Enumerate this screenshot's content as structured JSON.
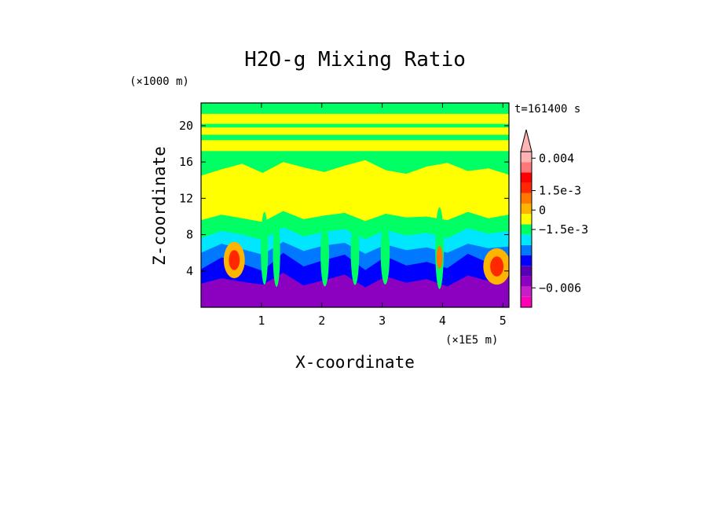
{
  "chart_data": {
    "type": "heatmap",
    "title": "H2O-g Mixing Ratio",
    "xlabel": "X-coordinate",
    "ylabel": "Z-coordinate",
    "x_unit": "(×1E5 m)",
    "y_unit": "(×1000 m)",
    "time_label": "t=161400 s",
    "xlim": [
      0,
      5.1
    ],
    "ylim": [
      0,
      22.5
    ],
    "x_ticks": [
      1,
      2,
      3,
      4,
      5
    ],
    "x_tick_labels": [
      "1",
      "2",
      "3",
      "4",
      "5"
    ],
    "y_ticks": [
      4,
      8,
      12,
      16,
      20
    ],
    "y_tick_labels": [
      "4",
      "8",
      "12",
      "16",
      "20"
    ],
    "colorbar": {
      "colors": [
        "#ff00b4",
        "#c81ec8",
        "#8c00c0",
        "#5a00b4",
        "#0000ff",
        "#0078ff",
        "#00e6ff",
        "#00ff64",
        "#ffff00",
        "#ffb400",
        "#ff7800",
        "#ff2800",
        "#ff0000",
        "#ff7878",
        "#ffb4b4"
      ],
      "labels": [
        {
          "text": "0.004",
          "value": 0.004
        },
        {
          "text": "1.5e-3",
          "value": 0.0015
        },
        {
          "text": "0",
          "value": 0
        },
        {
          "text": "−1.5e-3",
          "value": -0.0015
        },
        {
          "text": "−0.006",
          "value": -0.006
        }
      ],
      "range": [
        -0.0075,
        0.0045
      ]
    },
    "layers": [
      {
        "name": "surface-dry",
        "color": "#8c00c0",
        "z_top": [
          2.6,
          3.2,
          2.8,
          2.5,
          3.8,
          2.4,
          3.0,
          3.6,
          2.2,
          3.4,
          2.7,
          3.1,
          2.3,
          3.5,
          2.9,
          3.3
        ]
      },
      {
        "name": "blue-band",
        "color": "#0000ff",
        "z_top": [
          4.2,
          5.5,
          4.8,
          4.0,
          6.0,
          4.5,
          5.2,
          5.8,
          4.1,
          5.6,
          4.6,
          5.0,
          4.3,
          5.9,
          4.9,
          5.3
        ]
      },
      {
        "name": "azure-band",
        "color": "#0078ff",
        "z_top": [
          6.0,
          7.0,
          6.4,
          5.8,
          7.2,
          6.2,
          6.8,
          7.1,
          5.9,
          6.9,
          6.3,
          6.6,
          6.0,
          7.0,
          6.5,
          6.7
        ]
      },
      {
        "name": "cyan-band",
        "color": "#00e6ff",
        "z_top": [
          7.6,
          8.4,
          8.0,
          7.4,
          8.8,
          7.8,
          8.3,
          8.6,
          7.5,
          8.5,
          7.9,
          8.2,
          7.6,
          8.7,
          8.1,
          8.4
        ]
      },
      {
        "name": "green-band",
        "color": "#00ff64",
        "z_top": [
          9.6,
          10.2,
          9.8,
          9.4,
          10.6,
          9.7,
          10.1,
          10.4,
          9.5,
          10.3,
          9.9,
          10.0,
          9.6,
          10.5,
          9.8,
          10.2
        ]
      }
    ],
    "yellow_upper_top": [
      14.5,
      15.2,
      15.8,
      14.8,
      16.0,
      15.4,
      14.9,
      15.6,
      16.2,
      15.1,
      14.7,
      15.5,
      15.9,
      15.0,
      15.3,
      14.6
    ],
    "stratosphere_bands": [
      {
        "color": "#ffff00",
        "z_bottom": 17.2,
        "z_top": 18.4
      },
      {
        "color": "#ffff00",
        "z_bottom": 19.0,
        "z_top": 19.8
      },
      {
        "color": "#ffff00",
        "z_bottom": 20.2,
        "z_top": 21.3
      }
    ],
    "plumes": [
      {
        "x": 0.55,
        "z_center": 5.2,
        "width": 0.35,
        "height": 4.0,
        "color": "#ffb400"
      },
      {
        "x": 0.55,
        "z_center": 5.2,
        "width": 0.18,
        "height": 2.2,
        "color": "#ff2800"
      },
      {
        "x": 1.05,
        "z_center": 6.5,
        "width": 0.12,
        "height": 8.0,
        "color": "#00ff64"
      },
      {
        "x": 1.25,
        "z_center": 6.0,
        "width": 0.12,
        "height": 7.5,
        "color": "#00ff64"
      },
      {
        "x": 2.05,
        "z_center": 5.8,
        "width": 0.14,
        "height": 7.0,
        "color": "#00ff64"
      },
      {
        "x": 2.55,
        "z_center": 6.2,
        "width": 0.14,
        "height": 7.5,
        "color": "#00ff64"
      },
      {
        "x": 3.05,
        "z_center": 6.0,
        "width": 0.15,
        "height": 7.0,
        "color": "#00ff64"
      },
      {
        "x": 3.95,
        "z_center": 6.5,
        "width": 0.14,
        "height": 9.0,
        "color": "#00ff64"
      },
      {
        "x": 3.95,
        "z_center": 5.5,
        "width": 0.1,
        "height": 2.5,
        "color": "#ff7800"
      },
      {
        "x": 4.9,
        "z_center": 4.5,
        "width": 0.45,
        "height": 4.0,
        "color": "#ffb400"
      },
      {
        "x": 4.9,
        "z_center": 4.5,
        "width": 0.22,
        "height": 2.2,
        "color": "#ff2800"
      }
    ],
    "grid": false
  }
}
